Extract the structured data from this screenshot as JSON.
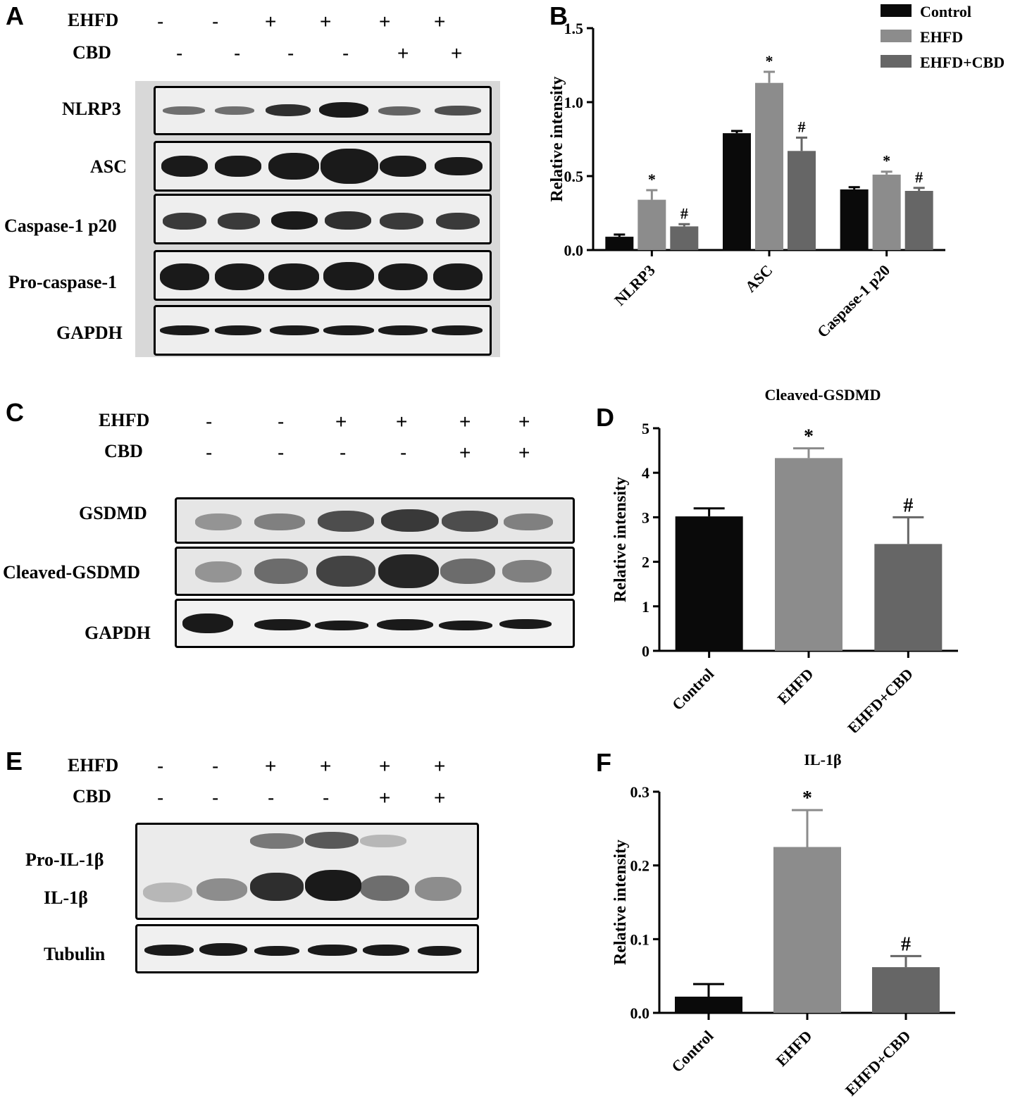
{
  "colors": {
    "control": "#0a0a0a",
    "ehfd": "#8c8c8c",
    "ehfd_cbd": "#666666"
  },
  "panels": {
    "A": {
      "letter": "A",
      "cond1": "EHFD",
      "cond2": "CBD",
      "cond1_signs": [
        "-",
        "-",
        "+",
        "+",
        "+",
        "+"
      ],
      "cond2_signs": [
        "-",
        "-",
        "-",
        "-",
        "+",
        "+"
      ],
      "rows": [
        "NLRP3",
        "ASC",
        "Caspase-1 p20",
        "Pro-caspase-1",
        "GAPDH"
      ]
    },
    "C": {
      "letter": "C",
      "cond1": "EHFD",
      "cond2": "CBD",
      "cond1_signs": [
        "-",
        "-",
        "+",
        "+",
        "+",
        "+"
      ],
      "cond2_signs": [
        "-",
        "-",
        "-",
        "-",
        "+",
        "+"
      ],
      "rows": [
        "GSDMD",
        "Cleaved-GSDMD",
        "GAPDH"
      ]
    },
    "E": {
      "letter": "E",
      "cond1": "EHFD",
      "cond2": "CBD",
      "cond1_signs": [
        "-",
        "-",
        "+",
        "+",
        "+",
        "+"
      ],
      "cond2_signs": [
        "-",
        "-",
        "-",
        "-",
        "+",
        "+"
      ],
      "rows": [
        "Pro-IL-1β",
        "IL-1β",
        "Tubulin"
      ]
    }
  },
  "chart_data": [
    {
      "panel": "B",
      "type": "bar",
      "title": "",
      "ylabel": "Relative intensity",
      "ylim": [
        0,
        1.5
      ],
      "yticks": [
        "0.0",
        "0.5",
        "1.0",
        "1.5"
      ],
      "categories": [
        "NLRP3",
        "ASC",
        "Caspase-1 p20"
      ],
      "legend": "top-right",
      "series": [
        {
          "name": "Control",
          "values": [
            0.09,
            0.79,
            0.41
          ],
          "errors": [
            0.015,
            0.015,
            0.015
          ],
          "marks": [
            "",
            "",
            ""
          ]
        },
        {
          "name": "EHFD",
          "values": [
            0.34,
            1.13,
            0.51
          ],
          "errors": [
            0.065,
            0.075,
            0.02
          ],
          "marks": [
            "*",
            "*",
            "*"
          ]
        },
        {
          "name": "EHFD+CBD",
          "values": [
            0.16,
            0.67,
            0.4
          ],
          "errors": [
            0.015,
            0.09,
            0.02
          ],
          "marks": [
            "#",
            "#",
            "#"
          ]
        }
      ]
    },
    {
      "panel": "D",
      "type": "bar",
      "title": "Cleaved-GSDMD",
      "ylabel": "Relative intensity",
      "ylim": [
        0,
        5
      ],
      "yticks": [
        "0",
        "1",
        "2",
        "3",
        "4",
        "5"
      ],
      "categories": [
        "Control",
        "EHFD",
        "EHFD+CBD"
      ],
      "values": [
        3.02,
        4.33,
        2.4
      ],
      "errors": [
        0.18,
        0.22,
        0.6
      ],
      "marks": [
        "",
        "*",
        "#"
      ]
    },
    {
      "panel": "F",
      "type": "bar",
      "title": "IL-1β",
      "ylabel": "Relative intensity",
      "ylim": [
        0,
        0.3
      ],
      "yticks": [
        "0.0",
        "0.1",
        "0.2",
        "0.3"
      ],
      "categories": [
        "Control",
        "EHFD",
        "EHFD+CBD"
      ],
      "values": [
        0.022,
        0.225,
        0.062
      ],
      "errors": [
        0.017,
        0.05,
        0.015
      ],
      "marks": [
        "",
        "*",
        "#"
      ]
    }
  ]
}
